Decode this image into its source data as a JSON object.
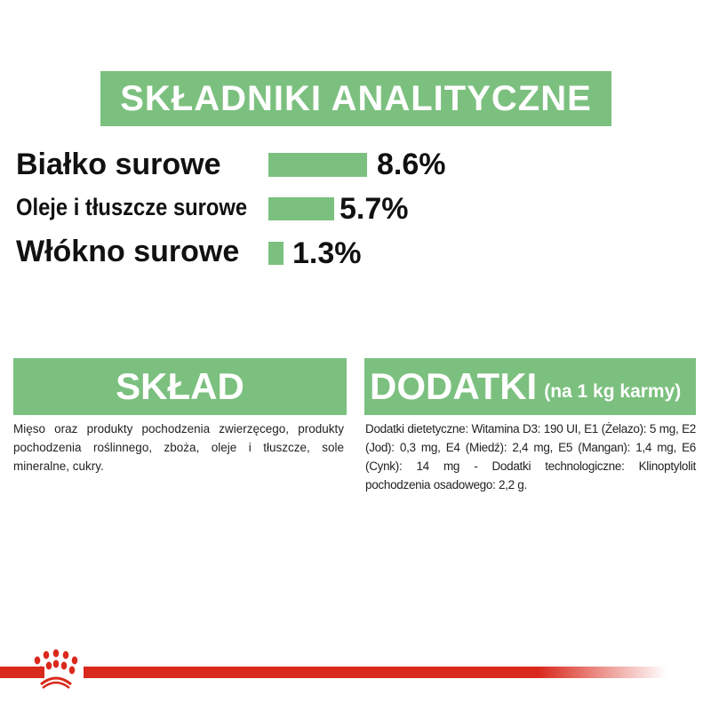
{
  "analytical": {
    "title": "SKŁADNIKI ANALITYCZNE",
    "items": [
      {
        "label": "Białko surowe",
        "value": "8.6%",
        "percent": 8.6
      },
      {
        "label": "Oleje i tłuszcze surowe",
        "value": "5.7%",
        "percent": 5.7
      },
      {
        "label": "Włókno surowe",
        "value": "1.3%",
        "percent": 1.3
      }
    ]
  },
  "composition": {
    "title": "SKŁAD",
    "text": "Mięso oraz produkty pochodzenia zwierzęcego, produkty pochodzenia roślinnego, zboża, oleje i tłuszcze, sole mineralne, cukry."
  },
  "additives": {
    "title": "DODATKI",
    "subtitle": "(na 1 kg karmy)",
    "text": "Dodatki dietetyczne: Witamina D3: 190 UI, E1 (Żelazo): 5 mg, E2 (Jod): 0,3 mg, E4 (Miedź): 2,4 mg, E5 (Mangan): 1,4 mg, E6 (Cynk): 14 mg - Dodatki technologiczne: Klinoptylolit pochodzenia osadowego: 2,2 g."
  },
  "colors": {
    "green": "#7cc07f",
    "red": "#d9291c"
  },
  "logo": {
    "icon": "royal-canin-crown-icon"
  }
}
